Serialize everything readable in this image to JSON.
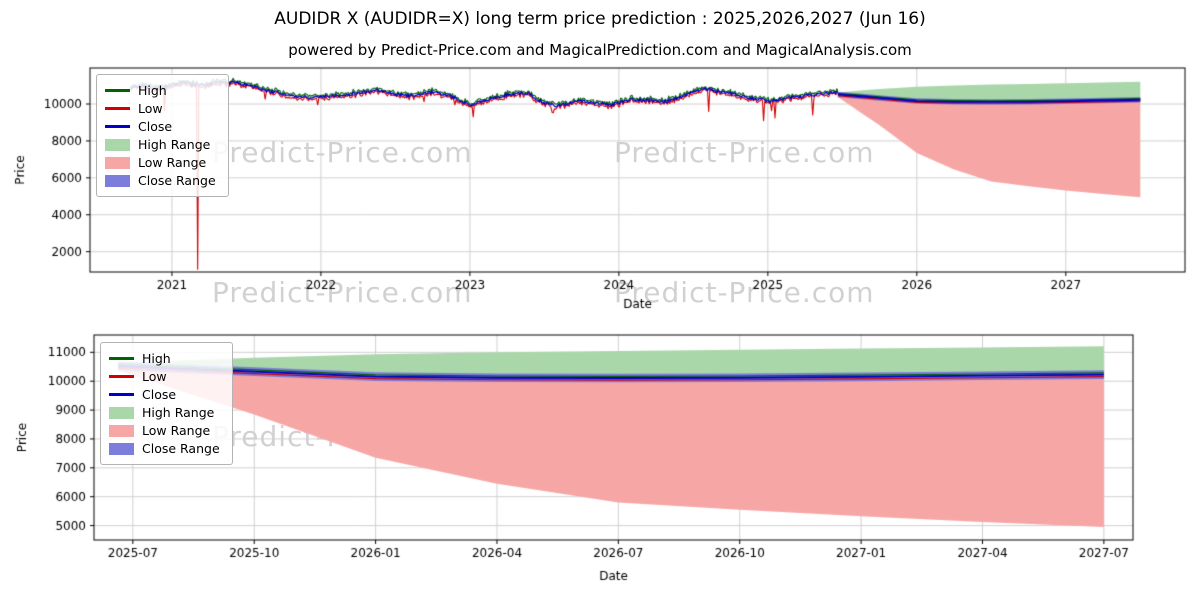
{
  "page": {
    "title": "AUDIDR X (AUDIDR=X) long term price prediction : 2025,2026,2027 (Jun 16)",
    "subtitle": "powered by Predict-Price.com and MagicalPrediction.com and MagicalAnalysis.com",
    "watermark": "Predict-Price.com"
  },
  "colors": {
    "high": "#006400",
    "low": "#d40000",
    "close": "#0000cd",
    "high_range": "#aad7aa",
    "low_range": "#f7a6a6",
    "close_range": "#7d7ddc",
    "grid": "#d0d0d0",
    "axis": "#000000",
    "watermark": "#9a9a9a"
  },
  "legend": [
    {
      "label": "High",
      "swatch": "line",
      "color_key": "high"
    },
    {
      "label": "Low",
      "swatch": "line",
      "color_key": "low"
    },
    {
      "label": "Close",
      "swatch": "line",
      "color_key": "close"
    },
    {
      "label": "High Range",
      "swatch": "patch",
      "color_key": "high_range"
    },
    {
      "label": "Low Range",
      "swatch": "patch",
      "color_key": "low_range"
    },
    {
      "label": "Close Range",
      "swatch": "patch",
      "color_key": "close_range"
    }
  ],
  "chart_data": [
    {
      "type": "line",
      "name": "historical-and-forecast",
      "xlabel": "Date",
      "ylabel": "Price",
      "xlim": [
        2020.45,
        2027.8
      ],
      "ylim": [
        900,
        11950
      ],
      "grid": true,
      "legend_position": "upper-left",
      "xticks": {
        "values": [
          2021,
          2022,
          2023,
          2024,
          2025,
          2026,
          2027
        ],
        "labels": [
          "2021",
          "2022",
          "2023",
          "2024",
          "2025",
          "2026",
          "2027"
        ]
      },
      "yticks": {
        "values": [
          2000,
          4000,
          6000,
          8000,
          10000
        ]
      },
      "historical": {
        "x_start": 2020.72,
        "x_end": 2025.47,
        "samples": 620,
        "noise_seed": 42,
        "noise_amplitude": 90,
        "high_extra": 140,
        "low_extra": 140,
        "edge_gap": 20,
        "spike_prob": 0.018,
        "spike_extra": 550,
        "close_points": [
          [
            2020.72,
            10850
          ],
          [
            2020.8,
            11000
          ],
          [
            2020.9,
            10800
          ],
          [
            2021.0,
            11050
          ],
          [
            2021.1,
            11120
          ],
          [
            2021.2,
            11000
          ],
          [
            2021.3,
            11120
          ],
          [
            2021.42,
            11180
          ],
          [
            2021.52,
            11000
          ],
          [
            2021.65,
            10700
          ],
          [
            2021.8,
            10450
          ],
          [
            2021.95,
            10350
          ],
          [
            2022.1,
            10450
          ],
          [
            2022.25,
            10600
          ],
          [
            2022.38,
            10750
          ],
          [
            2022.5,
            10500
          ],
          [
            2022.62,
            10450
          ],
          [
            2022.75,
            10650
          ],
          [
            2022.88,
            10400
          ],
          [
            2023.0,
            9950
          ],
          [
            2023.12,
            10250
          ],
          [
            2023.25,
            10500
          ],
          [
            2023.38,
            10600
          ],
          [
            2023.5,
            10050
          ],
          [
            2023.6,
            9900
          ],
          [
            2023.72,
            10200
          ],
          [
            2023.85,
            10050
          ],
          [
            2023.95,
            9950
          ],
          [
            2024.08,
            10250
          ],
          [
            2024.2,
            10200
          ],
          [
            2024.32,
            10150
          ],
          [
            2024.45,
            10500
          ],
          [
            2024.58,
            10850
          ],
          [
            2024.68,
            10650
          ],
          [
            2024.8,
            10500
          ],
          [
            2024.92,
            10250
          ],
          [
            2025.02,
            10150
          ],
          [
            2025.12,
            10300
          ],
          [
            2025.25,
            10450
          ],
          [
            2025.35,
            10550
          ],
          [
            2025.47,
            10650
          ]
        ],
        "low_spikes": [
          [
            2020.95,
            9650
          ],
          [
            2021.17,
            1050
          ],
          [
            2022.9,
            9950
          ],
          [
            2023.02,
            9300
          ],
          [
            2023.55,
            9550
          ],
          [
            2024.6,
            9600
          ],
          [
            2024.97,
            9100
          ],
          [
            2025.05,
            9250
          ],
          [
            2025.3,
            9400
          ]
        ]
      },
      "forecast": {
        "x": [
          2025.47,
          2025.62,
          2025.75,
          2026.0,
          2026.25,
          2026.5,
          2026.75,
          2027.0,
          2027.25,
          2027.5
        ],
        "close": [
          10520,
          10420,
          10330,
          10160,
          10120,
          10110,
          10120,
          10150,
          10190,
          10230
        ],
        "high_top": [
          10620,
          10730,
          10810,
          10930,
          11000,
          11050,
          11090,
          11130,
          11170,
          11210
        ],
        "low_bottom": [
          10380,
          9550,
          8850,
          7350,
          6450,
          5800,
          5550,
          5320,
          5120,
          4950
        ],
        "close_band": 150,
        "high_line_offset": 60,
        "low_line_offset": 70
      }
    },
    {
      "type": "line",
      "name": "forecast-detail",
      "xlabel": "Date",
      "ylabel": "Price",
      "xlim": [
        2025.42,
        2027.56
      ],
      "ylim": [
        4500,
        11600
      ],
      "grid": true,
      "legend_position": "upper-left",
      "xticks": {
        "values": [
          2025.5,
          2025.75,
          2026.0,
          2026.25,
          2026.5,
          2026.75,
          2027.0,
          2027.25,
          2027.5
        ],
        "labels": [
          "2025-07",
          "2025-10",
          "2026-01",
          "2026-04",
          "2026-07",
          "2026-10",
          "2027-01",
          "2027-04",
          "2027-07"
        ]
      },
      "yticks": {
        "values": [
          5000,
          6000,
          7000,
          8000,
          9000,
          10000,
          11000
        ]
      },
      "forecast": {
        "x": [
          2025.47,
          2025.62,
          2025.75,
          2026.0,
          2026.25,
          2026.5,
          2026.75,
          2027.0,
          2027.25,
          2027.5
        ],
        "close": [
          10520,
          10420,
          10330,
          10160,
          10120,
          10110,
          10120,
          10150,
          10190,
          10230
        ],
        "high_top": [
          10620,
          10730,
          10810,
          10930,
          11000,
          11050,
          11090,
          11130,
          11170,
          11210
        ],
        "low_bottom": [
          10380,
          9550,
          8850,
          7350,
          6450,
          5800,
          5550,
          5320,
          5120,
          4950
        ],
        "close_band": 150,
        "high_line_offset": 60,
        "low_line_offset": 70
      }
    }
  ]
}
